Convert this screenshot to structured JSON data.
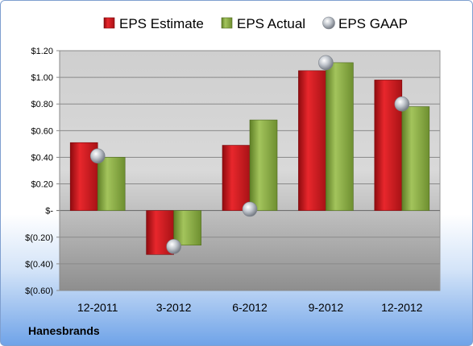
{
  "chart_data": {
    "type": "bar",
    "company": "Hanesbrands",
    "categories": [
      "12-2011",
      "3-2012",
      "6-2012",
      "9-2012",
      "12-2012"
    ],
    "series": [
      {
        "name": "EPS Estimate",
        "type": "bar",
        "color": "#c8191e",
        "values": [
          0.51,
          -0.33,
          0.49,
          1.05,
          0.98
        ]
      },
      {
        "name": "EPS Actual",
        "type": "bar",
        "color": "#8cb04a",
        "values": [
          0.4,
          -0.26,
          0.68,
          1.11,
          0.78
        ]
      },
      {
        "name": "EPS GAAP",
        "type": "scatter",
        "marker": "sphere",
        "color": "#a8aeb8",
        "values": [
          0.41,
          -0.27,
          0.01,
          1.11,
          0.8
        ]
      }
    ],
    "y_ticks": [
      1.2,
      1.0,
      0.8,
      0.6,
      0.4,
      0.2,
      0,
      -0.2,
      -0.4,
      -0.6
    ],
    "y_tick_labels": [
      "$1.20",
      "$1.00",
      "$0.80",
      "$0.60",
      "$0.40",
      "$0.20",
      "$-",
      "$(0.20)",
      "$(0.40)",
      "$(0.60)"
    ],
    "ylim": [
      -0.6,
      1.2
    ],
    "grid": true,
    "legend_position": "top"
  }
}
